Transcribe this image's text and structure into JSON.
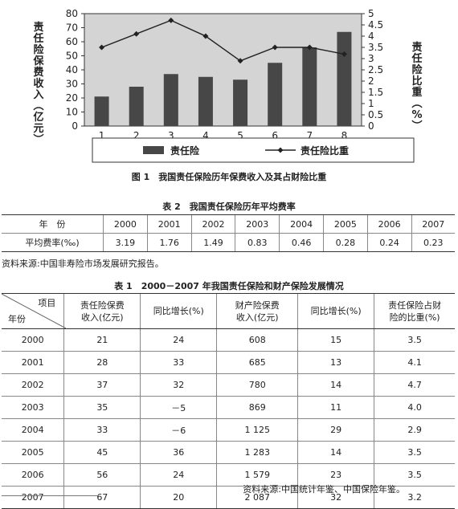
{
  "figure": {
    "caption": "图 1　我国责任保险历年保费收入及其占财险比重"
  },
  "chart_data": {
    "type": "bar+line",
    "categories": [
      "1",
      "2",
      "3",
      "4",
      "5",
      "6",
      "7",
      "8"
    ],
    "series": [
      {
        "name": "责任险",
        "type": "bar",
        "axis": "left",
        "values": [
          21,
          28,
          37,
          35,
          33,
          45,
          56,
          67
        ]
      },
      {
        "name": "责任险比重",
        "type": "line",
        "axis": "right",
        "values": [
          3.5,
          4.1,
          4.7,
          4.0,
          2.9,
          3.5,
          3.5,
          3.2
        ]
      }
    ],
    "ylabel_left": "责任险保费收入（亿元）",
    "ylabel_right": "责任险比重（%）",
    "ylim_left": [
      0,
      80
    ],
    "ylim_right": [
      0,
      5
    ],
    "yticks_left": [
      "0",
      "10",
      "20",
      "30",
      "40",
      "50",
      "60",
      "70",
      "80"
    ],
    "yticks_right": [
      "0",
      "0.5",
      "1",
      "1.5",
      "2",
      "2.5",
      "3",
      "3.5",
      "4",
      "4.5",
      "5"
    ],
    "legend_position": "bottom",
    "bar_color": "#474747",
    "plot_bg": "#d4d4d4"
  },
  "table2": {
    "caption": "表 2　我国责任保险历年平均费率",
    "row_year_label": "年　份",
    "row_rate_label": "平均费率(‰)",
    "years": [
      "2000",
      "2001",
      "2002",
      "2003",
      "2004",
      "2005",
      "2006",
      "2007"
    ],
    "rates": [
      "3.19",
      "1.76",
      "1.49",
      "0.83",
      "0.46",
      "0.28",
      "0.24",
      "0.23"
    ],
    "source": "资料来源:中国非寿险市场发展研究报告。"
  },
  "table1": {
    "caption": "表 1　2000－2007 年我国责任保险和财产保险发展情况",
    "corner_top": "项目",
    "corner_bottom": "年份",
    "headers": [
      "责任险保费\n收入(亿元)",
      "同比增长(%)",
      "财产险保费\n收入(亿元)",
      "同比增长(%)",
      "责任保险占财\n险的比重(%)"
    ],
    "rows": [
      [
        "2000",
        "21",
        "24",
        "608",
        "15",
        "3.5"
      ],
      [
        "2001",
        "28",
        "33",
        "685",
        "13",
        "4.1"
      ],
      [
        "2002",
        "37",
        "32",
        "780",
        "14",
        "4.7"
      ],
      [
        "2003",
        "35",
        "－5",
        "869",
        "11",
        "4.0"
      ],
      [
        "2004",
        "33",
        "－6",
        "1 125",
        "29",
        "2.9"
      ],
      [
        "2005",
        "45",
        "36",
        "1 283",
        "14",
        "3.5"
      ],
      [
        "2006",
        "56",
        "24",
        "1 579",
        "23",
        "3.5"
      ],
      [
        "2007",
        "67",
        "20",
        "2 087",
        "32",
        "3.2"
      ]
    ],
    "source": "资料来源:中国统计年鉴、中国保险年鉴。"
  }
}
